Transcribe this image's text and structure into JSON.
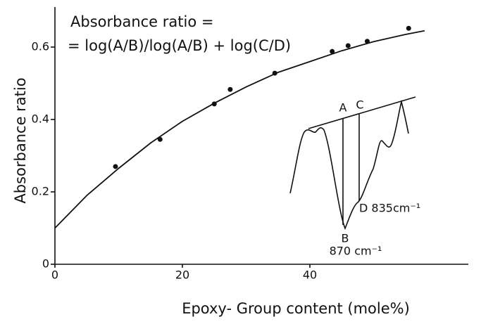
{
  "chart_data": {
    "type": "scatter",
    "annotation_title": [
      "Absorbance ratio =",
      "= log(A/B)/log(A/B) + log(C/D)"
    ],
    "x_label": "Epoxy- Group content (mole%)",
    "y_label": "Absorbance ratio",
    "x": [
      9.5,
      16.5,
      25,
      27.5,
      34.5,
      43.5,
      46,
      49,
      55.5
    ],
    "values": [
      0.27,
      0.345,
      0.443,
      0.483,
      0.528,
      0.588,
      0.604,
      0.616,
      0.652
    ],
    "color": "#111111",
    "fit": {
      "x": [
        0,
        5,
        10,
        15,
        20,
        25,
        30,
        35,
        40,
        45,
        50,
        55,
        58
      ],
      "values": [
        0.1,
        0.19,
        0.265,
        0.335,
        0.395,
        0.445,
        0.49,
        0.53,
        0.56,
        0.59,
        0.615,
        0.635,
        0.645
      ]
    },
    "xlim": [
      0,
      65
    ],
    "ylim": [
      0,
      0.71
    ],
    "xticks": [
      0,
      20,
      40
    ],
    "yticks": [
      0,
      0.2,
      0.4,
      0.6
    ],
    "inset_labels": [
      "A",
      "C",
      "B",
      "D 835cm⁻¹",
      "870 cm⁻¹"
    ]
  }
}
